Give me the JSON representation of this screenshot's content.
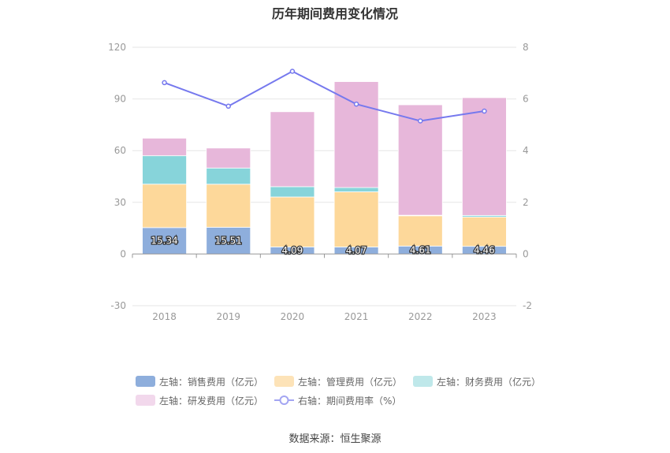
{
  "title": "历年期间费用变化情况",
  "source": "数据来源：恒生聚源",
  "chart_data": {
    "type": "bar",
    "stacked": true,
    "categories": [
      "2018",
      "2019",
      "2020",
      "2021",
      "2022",
      "2023"
    ],
    "left_axis": {
      "ylim": [
        -30,
        120
      ],
      "ticks": [
        "-30",
        "0",
        "30",
        "60",
        "90",
        "120"
      ]
    },
    "right_axis": {
      "ylim": [
        -2,
        8
      ],
      "ticks": [
        "-2",
        "0",
        "2",
        "4",
        "6",
        "8"
      ]
    },
    "grid": true,
    "legend_position": "bottom",
    "series": [
      {
        "name": "左轴：销售费用（亿元）",
        "color": "#8eaedc",
        "values": [
          15.34,
          15.51,
          4.09,
          4.07,
          4.61,
          4.46
        ],
        "labels": [
          "15.34",
          "15.51",
          "4.09",
          "4.07",
          "4.61",
          "4.46"
        ]
      },
      {
        "name": "左轴：管理费用（亿元）",
        "color": "#fdd89a",
        "values": [
          25.2,
          25.0,
          29.0,
          32.0,
          17.6,
          17.0
        ]
      },
      {
        "name": "左轴：财务费用（亿元）",
        "color": "#87d4da",
        "values": [
          16.5,
          9.4,
          6.0,
          2.5,
          0.3,
          0.9
        ]
      },
      {
        "name": "左轴：研发费用（亿元）",
        "color": "#e7b7da",
        "values": [
          10.2,
          11.6,
          43.5,
          61.5,
          64.1,
          68.4
        ]
      }
    ],
    "line_series": {
      "name": "右轴：期间费用率（%）",
      "color": "#7679ee",
      "values": [
        6.63,
        5.72,
        7.07,
        5.8,
        5.15,
        5.53
      ]
    }
  }
}
